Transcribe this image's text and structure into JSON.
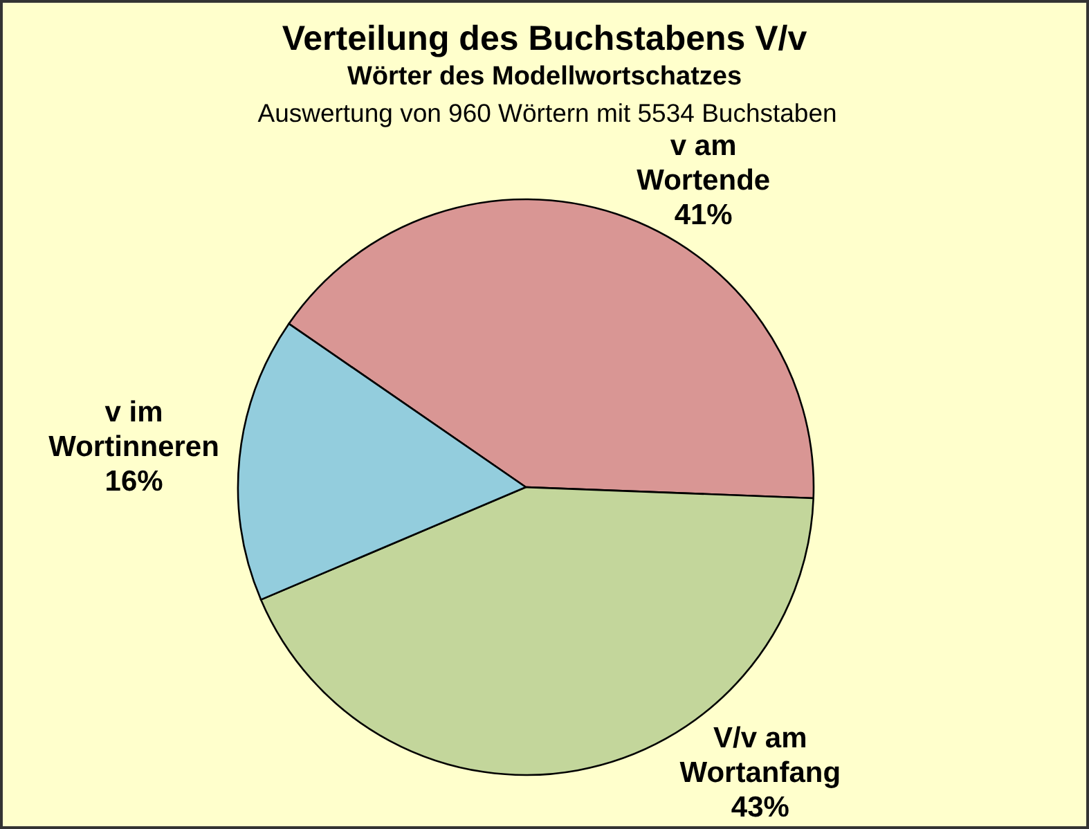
{
  "chart_data": {
    "type": "pie",
    "title": "Verteilung des Buchstabens V/v",
    "subtitle": "Wörter des Modellwortschatzes",
    "annotations": [
      "Auswertung von 960 Wörtern mit 5534 Buchstaben"
    ],
    "categories": [
      "v am Wortende",
      "V/v am Wortanfang",
      "v im Wortinneren"
    ],
    "values": [
      41,
      43,
      16
    ],
    "colors": [
      "#d99694",
      "#c3d69b",
      "#93cddd"
    ],
    "value_labels": [
      "41%",
      "43%",
      "16%"
    ]
  }
}
